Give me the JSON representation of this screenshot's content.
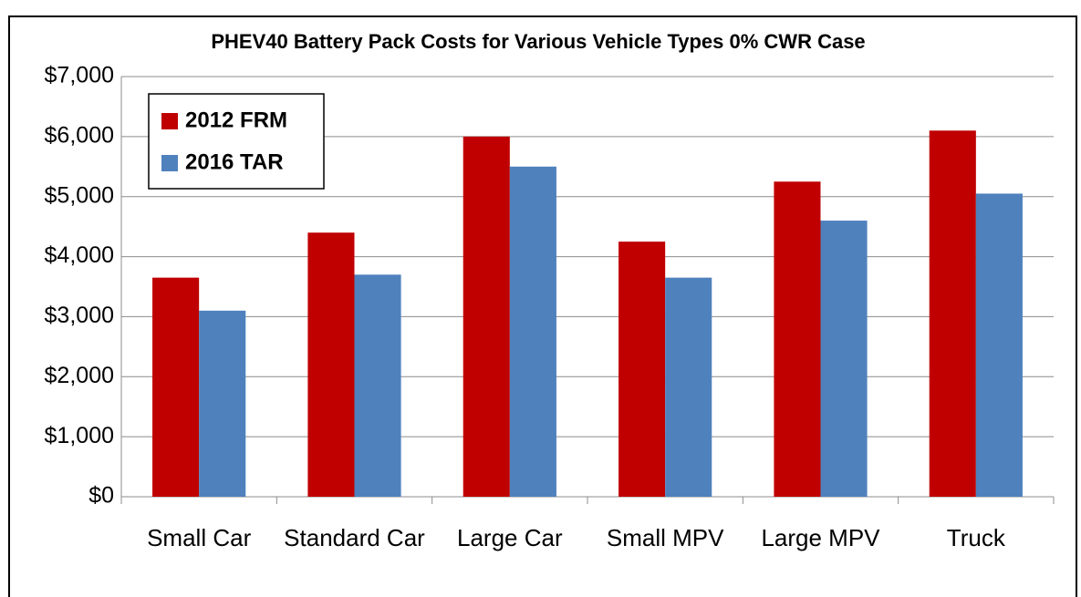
{
  "chart_data": {
    "type": "bar",
    "title": "PHEV40 Battery Pack Costs for Various Vehicle Types  0% CWR Case",
    "categories": [
      "Small Car",
      "Standard Car",
      "Large Car",
      "Small MPV",
      "Large MPV",
      "Truck"
    ],
    "series": [
      {
        "name": "2012 FRM",
        "color": "#c00000",
        "values": [
          3650,
          4400,
          6000,
          4250,
          5250,
          6100
        ]
      },
      {
        "name": "2016 TAR",
        "color": "#4f81bd",
        "values": [
          3100,
          3700,
          5500,
          3650,
          4600,
          5050
        ]
      }
    ],
    "ylim": [
      0,
      7000
    ],
    "yticks": [
      {
        "value": 0,
        "label": "$0"
      },
      {
        "value": 1000,
        "label": "$1,000"
      },
      {
        "value": 2000,
        "label": "$2,000"
      },
      {
        "value": 3000,
        "label": "$3,000"
      },
      {
        "value": 4000,
        "label": "$4,000"
      },
      {
        "value": 5000,
        "label": "$5,000"
      },
      {
        "value": 6000,
        "label": "$6,000"
      },
      {
        "value": 7000,
        "label": "$7,000"
      }
    ],
    "grid": true,
    "legend": "upper left"
  }
}
